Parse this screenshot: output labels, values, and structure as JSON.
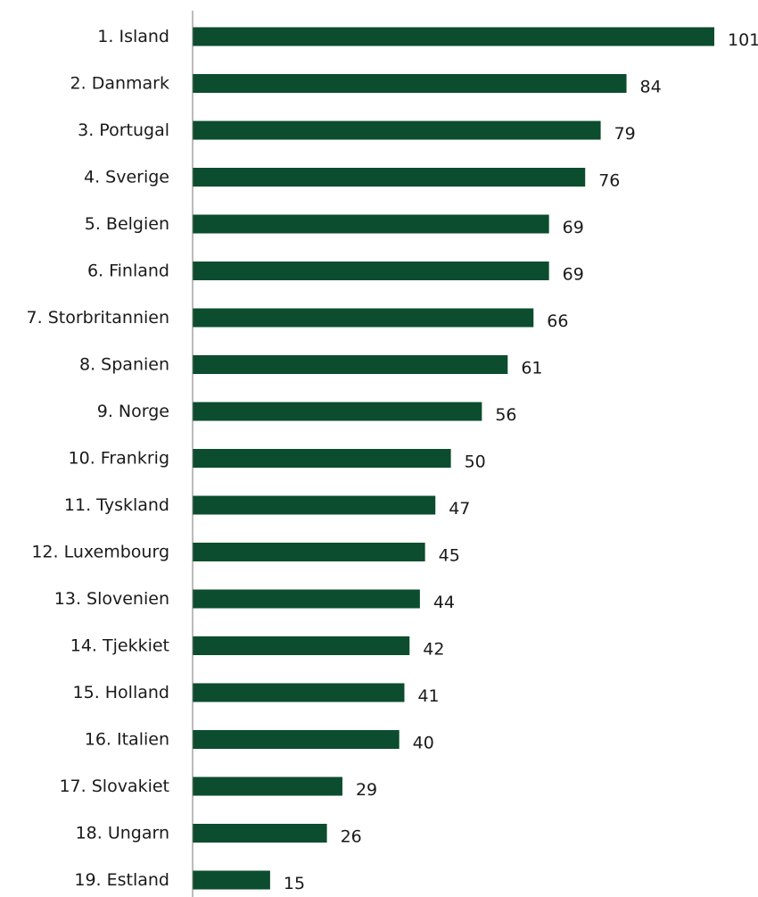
{
  "chart_data": {
    "type": "bar",
    "orientation": "horizontal",
    "title": "",
    "xlabel": "",
    "ylabel": "",
    "categories": [
      "1. Island",
      "2. Danmark",
      "3. Portugal",
      "4. Sverige",
      "5. Belgien",
      "6. Finland",
      "7. Storbritannien",
      "8. Spanien",
      "9. Norge",
      "10. Frankrig",
      "11. Tyskland",
      "12. Luxembourg",
      "13. Slovenien",
      "14. Tjekkiet",
      "15. Holland",
      "16. Italien",
      "17. Slovakiet",
      "18. Ungarn",
      "19. Estland"
    ],
    "values": [
      101,
      84,
      79,
      76,
      69,
      69,
      66,
      61,
      56,
      50,
      47,
      45,
      44,
      42,
      41,
      40,
      29,
      26,
      15
    ],
    "data_labels": [
      "101",
      "84",
      "79",
      "76",
      "69",
      "69",
      "66",
      "61",
      "56",
      "50",
      "47",
      "45",
      "44",
      "42",
      "41",
      "40",
      "29",
      "26",
      "15"
    ],
    "xlim": [
      0,
      101
    ],
    "grid": false,
    "legend": "none",
    "bar_color": "#0b4d2e"
  }
}
